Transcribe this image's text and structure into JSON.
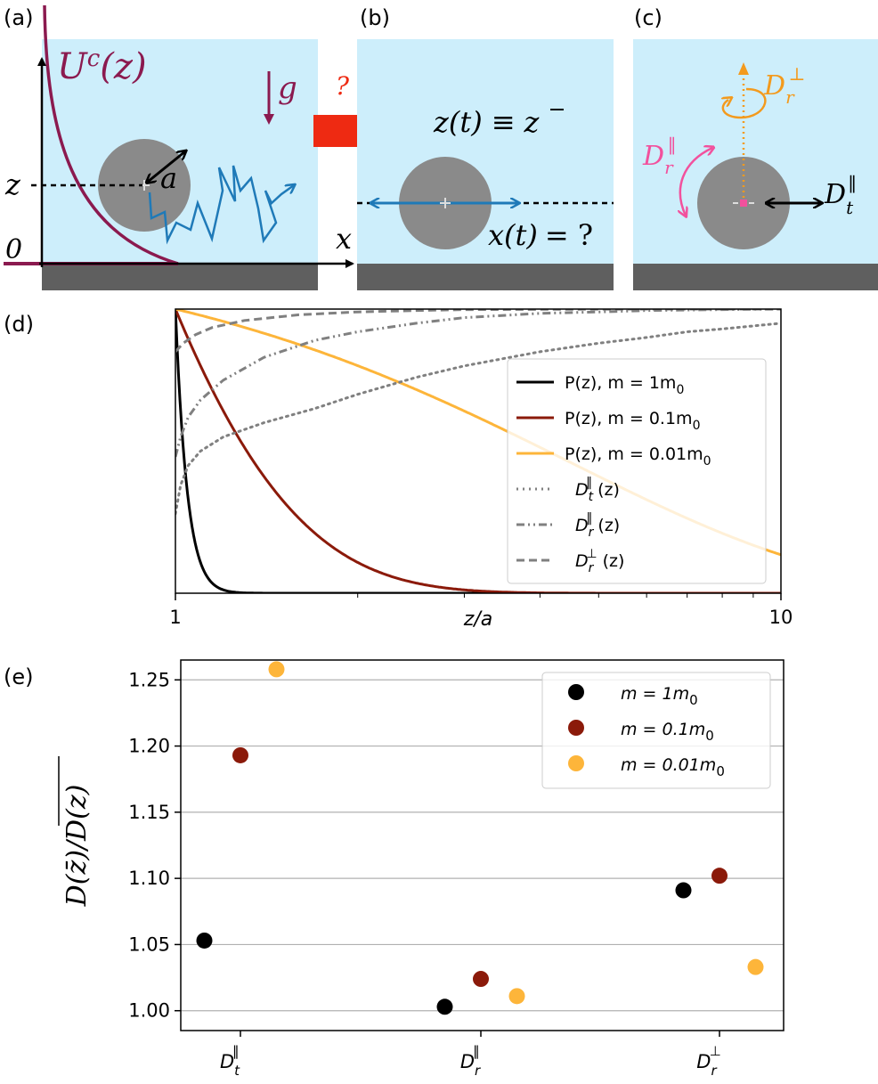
{
  "panels": {
    "a": {
      "label": "(a)",
      "potential": "U",
      "potential_sup": "c",
      "potential_arg": "(z)",
      "gravity": "g",
      "radius": "a",
      "z_label": "z",
      "zero_label": "0",
      "x_label": "x"
    },
    "b": {
      "label": "(b)",
      "question": "?",
      "z_eq_lhs": "z(t)",
      "z_eq_rel": "≡",
      "z_eq_rhs": "z",
      "x_eq_lhs": "x(t)",
      "x_eq_rhs": "= ?"
    },
    "c": {
      "label": "(c)",
      "dr_perp_base": "D",
      "dr_perp_sub": "r",
      "dr_perp_sup": "⊥",
      "dr_par_base": "D",
      "dr_par_sub": "r",
      "dr_par_sup": "‖",
      "dt_par_base": "D",
      "dt_par_sub": "t",
      "dt_par_sup": "‖"
    },
    "d": {
      "label": "(d)"
    },
    "e": {
      "label": "(e)"
    }
  },
  "colors": {
    "fluid": "#cdeefb",
    "wall": "#5f5f5f",
    "particle": "#8a8a8a",
    "potential": "#8b1a4f",
    "trajectory": "#1f7ab8",
    "arrow_red": "#ee2a12",
    "orange": "#f39a1d",
    "pink": "#f2519d",
    "m1": "#000000",
    "m01": "#8b1a0a",
    "m001": "#fdb53a",
    "gray": "#808080"
  },
  "chart_data": [
    {
      "id": "d",
      "type": "line",
      "title": "",
      "xlabel": "z/a",
      "ylabel": "",
      "xscale": "log",
      "xlim": [
        1,
        10
      ],
      "ylim": [
        0,
        1
      ],
      "xticks": [
        {
          "value": 1,
          "label": "1"
        },
        {
          "value": 10,
          "label": "10"
        }
      ],
      "minor_xticks": [
        2,
        3,
        4,
        5,
        6,
        7,
        8,
        9
      ],
      "legend": {
        "position": "right",
        "entries": [
          {
            "series": "p1",
            "text": "P(z), m = 1m",
            "sub": "0"
          },
          {
            "series": "p01",
            "text": "P(z), m = 0.1m",
            "sub": "0"
          },
          {
            "series": "p001",
            "text": "P(z), m = 0.01m",
            "sub": "0"
          },
          {
            "series": "dt",
            "text": "D",
            "sub": "t",
            "sup": "‖",
            "tail": "(z)"
          },
          {
            "series": "drpar",
            "text": "D",
            "sub": "r",
            "sup": "‖",
            "tail": "(z)"
          },
          {
            "series": "drperp",
            "text": "D",
            "sub": "r",
            "sup": "⊥",
            "tail": "(z)"
          }
        ]
      },
      "series": [
        {
          "key": "p1",
          "name": "P(z), m = 1m0",
          "kind": "exp",
          "decay_length": 0.045,
          "color": "#000000",
          "dash": "solid"
        },
        {
          "key": "p01",
          "name": "P(z), m = 0.1m0",
          "kind": "exp",
          "decay_length": 0.45,
          "color": "#8b1a0a",
          "dash": "solid"
        },
        {
          "key": "p001",
          "name": "P(z), m = 0.01m0",
          "kind": "exp",
          "decay_length": 4.5,
          "color": "#fdb53a",
          "dash": "solid"
        },
        {
          "key": "dt",
          "name": "Dt‖(z)",
          "kind": "mobility",
          "x": [
            1.0,
            1.02,
            1.05,
            1.1,
            1.2,
            1.4,
            1.7,
            2.0,
            2.5,
            3,
            4,
            5,
            6,
            7,
            8,
            10
          ],
          "y": [
            0.28,
            0.38,
            0.45,
            0.5,
            0.55,
            0.6,
            0.65,
            0.7,
            0.76,
            0.8,
            0.85,
            0.88,
            0.9,
            0.92,
            0.93,
            0.95
          ],
          "color": "#808080",
          "dash": "dotted"
        },
        {
          "key": "drpar",
          "name": "Dr‖(z)",
          "kind": "mobility",
          "x": [
            1.0,
            1.02,
            1.05,
            1.1,
            1.2,
            1.4,
            1.7,
            2.0,
            2.5,
            3,
            4,
            5,
            6,
            8,
            10
          ],
          "y": [
            0.48,
            0.55,
            0.62,
            0.68,
            0.75,
            0.83,
            0.89,
            0.92,
            0.95,
            0.97,
            0.985,
            0.99,
            0.995,
            0.998,
            1.0
          ],
          "color": "#808080",
          "dash": "dashdotdot"
        },
        {
          "key": "drperp",
          "name": "Dr⊥(z)",
          "kind": "mobility",
          "x": [
            1.0,
            1.03,
            1.08,
            1.15,
            1.3,
            1.6,
            2.0,
            2.5,
            3,
            4,
            6,
            10
          ],
          "y": [
            0.85,
            0.88,
            0.91,
            0.935,
            0.96,
            0.98,
            0.99,
            0.995,
            0.998,
            0.999,
            1.0,
            1.0
          ],
          "color": "#808080",
          "dash": "dashed"
        }
      ]
    },
    {
      "id": "e",
      "type": "scatter",
      "title": "",
      "ylabel": "D(z̄)/D(z)",
      "ylim": [
        0.985,
        1.265
      ],
      "yticks": [
        1.0,
        1.05,
        1.1,
        1.15,
        1.2,
        1.25
      ],
      "ytick_labels": [
        "1.00",
        "1.05",
        "1.10",
        "1.15",
        "1.20",
        "1.25"
      ],
      "grid": "horizontal",
      "categories": [
        {
          "base": "D",
          "sub": "t",
          "sup": "‖"
        },
        {
          "base": "D",
          "sub": "r",
          "sup": "‖"
        },
        {
          "base": "D",
          "sub": "r",
          "sup": "⊥"
        }
      ],
      "legend": {
        "position": "top-right",
        "entries": [
          {
            "text": "m = 1m",
            "sub": "0"
          },
          {
            "text": "m = 0.1m",
            "sub": "0"
          },
          {
            "text": "m = 0.01m",
            "sub": "0"
          }
        ]
      },
      "series": [
        {
          "name": "m = 1m0",
          "color": "#000000",
          "offset": -0.15,
          "values": [
            1.053,
            1.003,
            1.091
          ]
        },
        {
          "name": "m = 0.1m0",
          "color": "#8b1a0a",
          "offset": 0.0,
          "values": [
            1.193,
            1.024,
            1.102
          ]
        },
        {
          "name": "m = 0.01m0",
          "color": "#fdb53a",
          "offset": 0.15,
          "values": [
            1.258,
            1.011,
            1.033
          ]
        }
      ]
    }
  ]
}
